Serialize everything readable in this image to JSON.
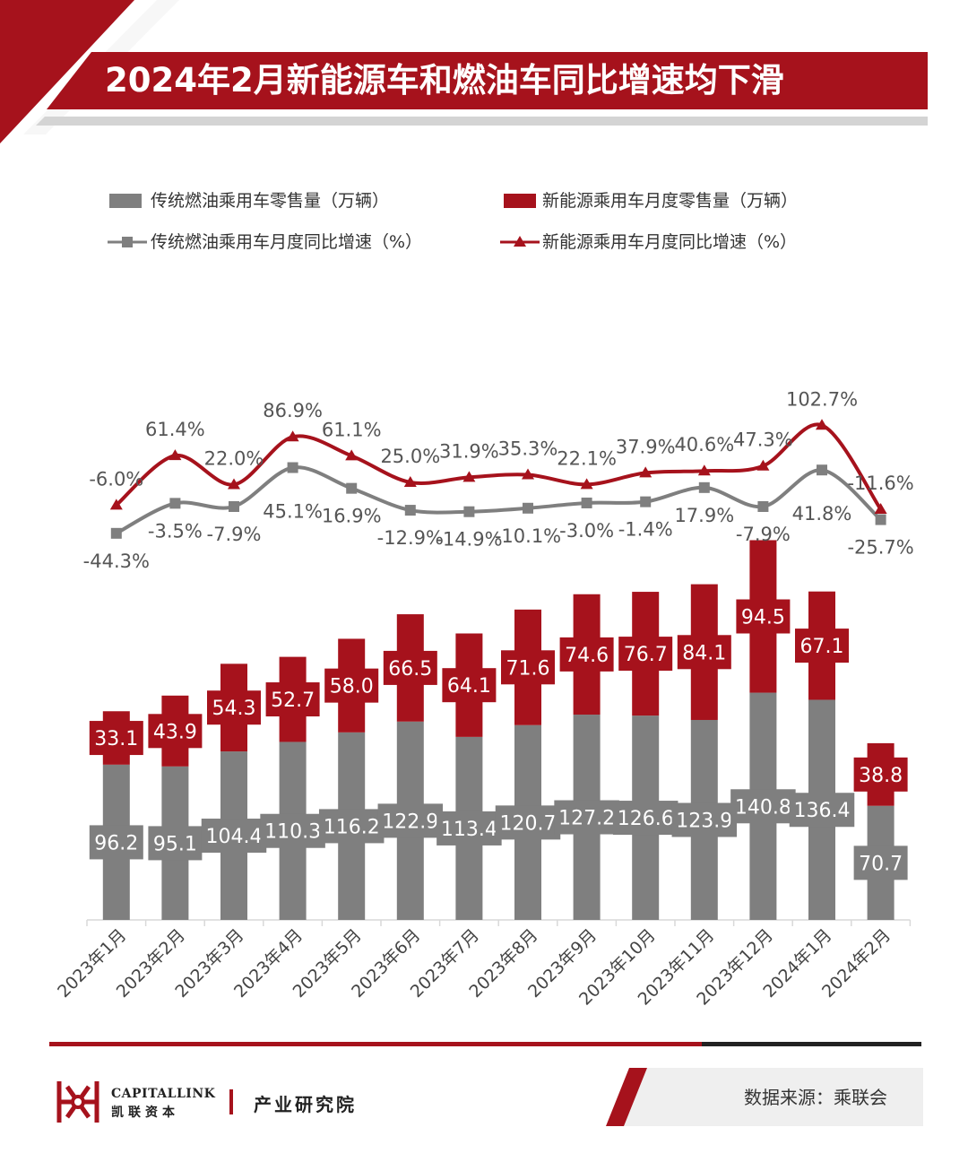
{
  "header": {
    "title": "2024年2月新能源车和燃油车同比增速均下滑"
  },
  "legend": {
    "ice_sales": "传统燃油乘用车零售量（万辆）",
    "nev_sales": "新能源乘用车月度零售量（万辆）",
    "ice_yoy": "传统燃油乘用车月度同比增速（%）",
    "nev_yoy": "新能源乘用车月度同比增速（%）"
  },
  "colors": {
    "accent": "#A6121C",
    "gray": "#7F7F7F",
    "grid": "#D9D9D9",
    "divider_dark": "#222222"
  },
  "chart_data": {
    "type": "bar",
    "title": "2024年2月新能源车和燃油车同比增速均下滑",
    "categories": [
      "2023年1月",
      "2023年2月",
      "2023年3月",
      "2023年4月",
      "2023年5月",
      "2023年6月",
      "2023年7月",
      "2023年8月",
      "2023年9月",
      "2023年10月",
      "2023年11月",
      "2023年12月",
      "2024年1月",
      "2024年2月"
    ],
    "stacked": true,
    "series": [
      {
        "name": "传统燃油乘用车零售量（万辆）",
        "kind": "bar",
        "values": [
          96.2,
          95.1,
          104.4,
          110.3,
          116.2,
          122.9,
          113.4,
          120.7,
          127.2,
          126.6,
          123.9,
          140.8,
          136.4,
          70.7
        ]
      },
      {
        "name": "新能源乘用车月度零售量（万辆）",
        "kind": "bar",
        "values": [
          33.1,
          43.9,
          54.3,
          52.7,
          58.0,
          66.5,
          64.1,
          71.6,
          74.6,
          76.7,
          84.1,
          94.5,
          67.1,
          38.8
        ]
      },
      {
        "name": "传统燃油乘用车月度同比增速（%）",
        "kind": "line",
        "marker": "square",
        "values": [
          -44.3,
          -3.5,
          -7.9,
          45.1,
          16.9,
          -12.9,
          -14.9,
          -10.1,
          -3.0,
          -1.4,
          17.9,
          -7.9,
          41.8,
          -25.7
        ]
      },
      {
        "name": "新能源乘用车月度同比增速（%）",
        "kind": "line",
        "marker": "triangle",
        "values": [
          -6.0,
          61.4,
          22.0,
          86.9,
          61.1,
          25.0,
          31.9,
          35.3,
          22.1,
          37.9,
          40.6,
          47.3,
          102.7,
          -11.6
        ]
      }
    ],
    "bar_labels": {
      "ice": [
        "96.2",
        "95.1",
        "104.4",
        "110.3",
        "116.2",
        "122.9",
        "113.4",
        "120.7",
        "127.2",
        "126.6",
        "123.9",
        "140.8",
        "136.4",
        "70.7"
      ],
      "nev": [
        "33.1",
        "43.9",
        "54.3",
        "52.7",
        "58.0",
        "66.5",
        "64.1",
        "71.6",
        "74.6",
        "76.7",
        "84.1",
        "94.5",
        "67.1",
        "38.8"
      ]
    },
    "line_labels": {
      "ice": [
        "-44.3%",
        "-3.5%",
        "-7.9%",
        "45.1%",
        "16.9%",
        "-12.9%",
        "-14.9%",
        "-10.1%",
        "-3.0%",
        "-1.4%",
        "17.9%",
        "-7.9%",
        "41.8%",
        "-25.7%"
      ],
      "nev": [
        "-6.0%",
        "61.4%",
        "22.0%",
        "86.9%",
        "61.1%",
        "25.0%",
        "31.9%",
        "35.3%",
        "22.1%",
        "37.9%",
        "40.6%",
        "47.3%",
        "102.7%",
        "-11.6%"
      ]
    },
    "xlabel": "",
    "ylabel": "",
    "grid": false,
    "legend_position": "top"
  },
  "footer": {
    "brand_en": "CAPITALLINK",
    "brand_cn": "凯联资本",
    "division": "产业研究院",
    "source": "数据来源：乘联会"
  }
}
